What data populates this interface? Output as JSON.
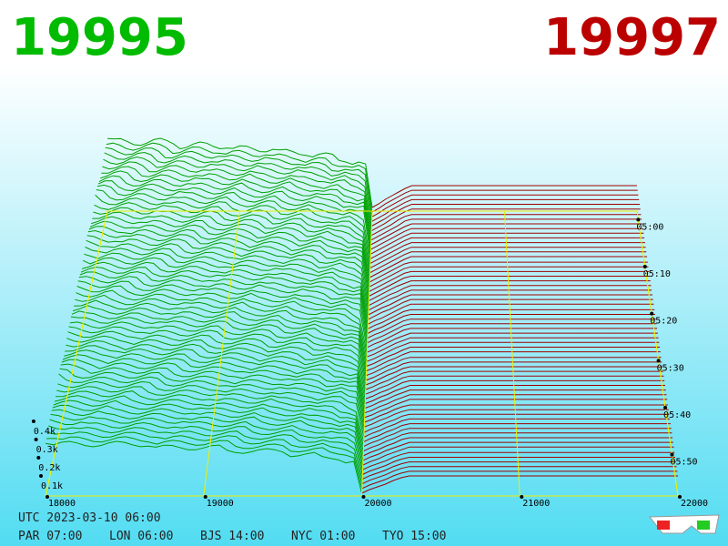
{
  "header": {
    "bid": "19995",
    "ask": "19997"
  },
  "price_axis": [
    "18000",
    "19000",
    "20000",
    "21000",
    "22000"
  ],
  "time_axis": [
    "05:00",
    "05:10",
    "05:20",
    "05:30",
    "05:40",
    "05:50"
  ],
  "depth_axis": [
    "0.1k",
    "0.2k",
    "0.3k",
    "0.4k"
  ],
  "footer": {
    "utc": "UTC 2023-03-10 06:00",
    "cities": [
      "PAR 07:00",
      "LON 06:00",
      "BJS 14:00",
      "NYC 01:00",
      "TYO 15:00"
    ]
  }
}
